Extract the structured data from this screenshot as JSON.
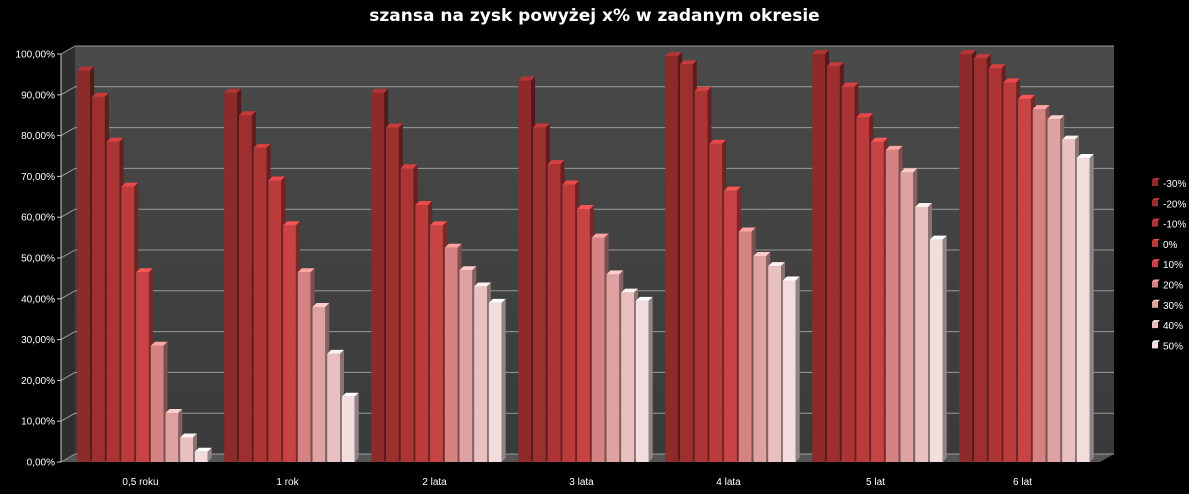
{
  "chart_data": {
    "type": "bar",
    "title": "szansa na zysk powyżej x% w zadanym okresie",
    "xlabel": "",
    "ylabel": "",
    "ylim": [
      0,
      100
    ],
    "y_tick_labels": [
      "0,00%",
      "10,00%",
      "20,00%",
      "30,00%",
      "40,00%",
      "50,00%",
      "60,00%",
      "70,00%",
      "80,00%",
      "90,00%",
      "100,00%"
    ],
    "categories": [
      "0,5 roku",
      "1 rok",
      "2 lata",
      "3 lata",
      "4 lata",
      "5 lat",
      "6 lat"
    ],
    "grid": true,
    "legend_position": "right",
    "series": [
      {
        "name": "-30%",
        "color": "#8e2a2a",
        "values": [
          96,
          90.5,
          90.5,
          93.5,
          99.5,
          100,
          100
        ]
      },
      {
        "name": "-20%",
        "color": "#9e2f2f",
        "values": [
          89.5,
          85,
          82,
          82,
          97.5,
          97,
          99
        ]
      },
      {
        "name": "-10%",
        "color": "#ad3434",
        "values": [
          78.5,
          77,
          72,
          73,
          91,
          92,
          96.5
        ]
      },
      {
        "name": "0%",
        "color": "#bb3a3a",
        "values": [
          67.5,
          69,
          63,
          68,
          78,
          84.5,
          93
        ]
      },
      {
        "name": "10%",
        "color": "#c84444",
        "values": [
          46.5,
          58,
          58,
          62,
          66.5,
          78.5,
          89
        ]
      },
      {
        "name": "20%",
        "color": "#d48282",
        "values": [
          28.5,
          46.5,
          52.5,
          55,
          56.5,
          76.5,
          86.5
        ]
      },
      {
        "name": "30%",
        "color": "#dea2a2",
        "values": [
          12,
          38,
          47,
          46,
          50.5,
          71,
          84
        ]
      },
      {
        "name": "40%",
        "color": "#e8c0c0",
        "values": [
          6,
          26.5,
          43,
          41.5,
          48,
          62.5,
          79
        ]
      },
      {
        "name": "50%",
        "color": "#f2dcdc",
        "values": [
          2.5,
          16,
          39,
          39.5,
          44.5,
          54.5,
          74.5
        ]
      }
    ]
  }
}
